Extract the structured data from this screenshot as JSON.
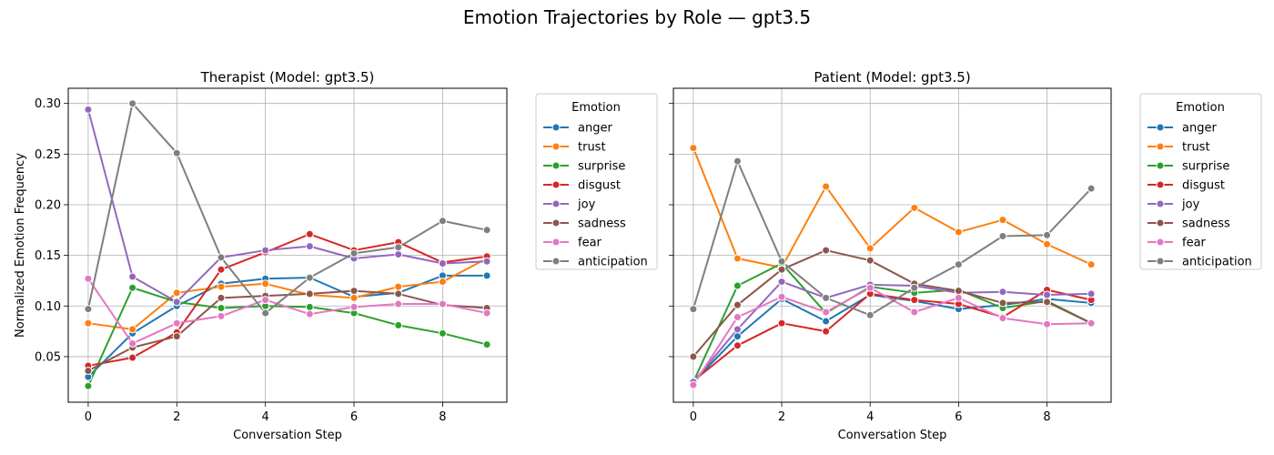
{
  "figure": {
    "title": "Emotion Trajectories by Role — gpt3.5"
  },
  "colors": {
    "anger": "#1f77b4",
    "trust": "#ff7f0e",
    "surprise": "#2ca02c",
    "disgust": "#d62728",
    "joy": "#9467bd",
    "sadness": "#8c564b",
    "fear": "#e377c2",
    "anticipation": "#7f7f7f",
    "grid": "#b0b0b0"
  },
  "chart_data": [
    {
      "type": "line",
      "title": "Therapist (Model: gpt3.5)",
      "xlabel": "Conversation Step",
      "ylabel": "Normalized Emotion Frequency",
      "x": [
        0,
        1,
        2,
        3,
        4,
        5,
        6,
        7,
        8,
        9
      ],
      "xlim": [
        -0.45,
        9.45
      ],
      "ylim": [
        0.005,
        0.315
      ],
      "xticks": [
        0,
        2,
        4,
        6,
        8
      ],
      "yticks": [
        0.05,
        0.1,
        0.15,
        0.2,
        0.25,
        0.3
      ],
      "ytick_labels": [
        "0.05",
        "0.10",
        "0.15",
        "0.20",
        "0.25",
        "0.30"
      ],
      "grid": true,
      "legend": {
        "title": "Emotion",
        "placement": "outside right"
      },
      "series": [
        {
          "name": "anger",
          "values": [
            0.03,
            0.073,
            0.1,
            0.122,
            0.127,
            0.128,
            0.109,
            0.113,
            0.13,
            0.13
          ]
        },
        {
          "name": "trust",
          "values": [
            0.083,
            0.077,
            0.113,
            0.119,
            0.122,
            0.111,
            0.108,
            0.119,
            0.124,
            0.147
          ]
        },
        {
          "name": "surprise",
          "values": [
            0.021,
            0.118,
            0.104,
            0.098,
            0.1,
            0.099,
            0.093,
            0.081,
            0.073,
            0.062
          ]
        },
        {
          "name": "disgust",
          "values": [
            0.041,
            0.049,
            0.074,
            0.136,
            0.153,
            0.171,
            0.155,
            0.163,
            0.143,
            0.149
          ]
        },
        {
          "name": "joy",
          "values": [
            0.294,
            0.129,
            0.104,
            0.148,
            0.155,
            0.159,
            0.147,
            0.151,
            0.142,
            0.144
          ]
        },
        {
          "name": "sadness",
          "values": [
            0.036,
            0.059,
            0.07,
            0.108,
            0.11,
            0.112,
            0.115,
            0.112,
            0.101,
            0.098
          ]
        },
        {
          "name": "fear",
          "values": [
            0.127,
            0.063,
            0.083,
            0.09,
            0.106,
            0.092,
            0.099,
            0.102,
            0.102,
            0.093
          ]
        },
        {
          "name": "anticipation",
          "values": [
            0.097,
            0.3,
            0.251,
            0.148,
            0.093,
            0.128,
            0.152,
            0.158,
            0.184,
            0.175
          ]
        }
      ]
    },
    {
      "type": "line",
      "title": "Patient (Model: gpt3.5)",
      "xlabel": "Conversation Step",
      "ylabel": "",
      "x": [
        0,
        1,
        2,
        3,
        4,
        5,
        6,
        7,
        8,
        9
      ],
      "xlim": [
        -0.45,
        9.45
      ],
      "ylim": [
        0.005,
        0.315
      ],
      "xticks": [
        0,
        2,
        4,
        6,
        8
      ],
      "yticks": [
        0.05,
        0.1,
        0.15,
        0.2,
        0.25,
        0.3
      ],
      "ytick_labels": [],
      "grid": true,
      "legend": {
        "title": "Emotion",
        "placement": "outside right"
      },
      "series": [
        {
          "name": "anger",
          "values": [
            0.025,
            0.07,
            0.107,
            0.085,
            0.111,
            0.105,
            0.097,
            0.101,
            0.107,
            0.103
          ]
        },
        {
          "name": "trust",
          "values": [
            0.256,
            0.147,
            0.138,
            0.218,
            0.157,
            0.197,
            0.173,
            0.185,
            0.161,
            0.141
          ]
        },
        {
          "name": "surprise",
          "values": [
            0.025,
            0.12,
            0.142,
            0.093,
            0.119,
            0.113,
            0.116,
            0.098,
            0.105,
            0.083
          ]
        },
        {
          "name": "disgust",
          "values": [
            0.026,
            0.061,
            0.083,
            0.075,
            0.112,
            0.106,
            0.102,
            0.089,
            0.116,
            0.106
          ]
        },
        {
          "name": "joy",
          "values": [
            0.025,
            0.077,
            0.124,
            0.108,
            0.121,
            0.12,
            0.113,
            0.114,
            0.111,
            0.112
          ]
        },
        {
          "name": "sadness",
          "values": [
            0.05,
            0.101,
            0.136,
            0.155,
            0.145,
            0.122,
            0.115,
            0.103,
            0.104,
            0.083
          ]
        },
        {
          "name": "fear",
          "values": [
            0.022,
            0.089,
            0.109,
            0.094,
            0.118,
            0.094,
            0.108,
            0.088,
            0.082,
            0.083
          ]
        },
        {
          "name": "anticipation",
          "values": [
            0.097,
            0.243,
            0.144,
            0.108,
            0.091,
            0.118,
            0.141,
            0.169,
            0.17,
            0.216
          ]
        }
      ]
    }
  ]
}
